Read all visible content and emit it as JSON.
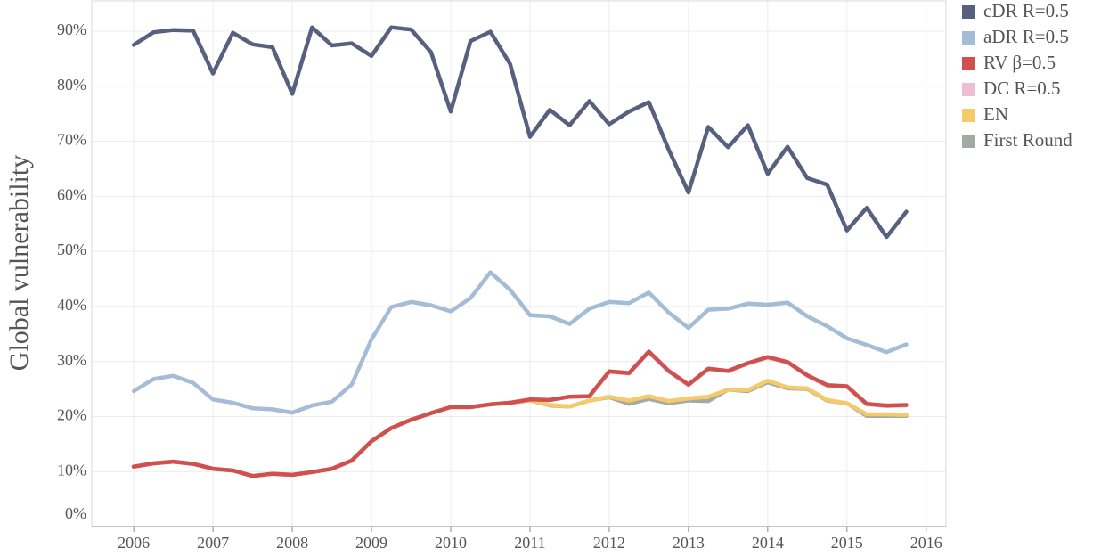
{
  "chart_data": {
    "type": "line",
    "y_label": "Global vulnerability",
    "x": [
      2006,
      2006.25,
      2006.5,
      2006.75,
      2007,
      2007.25,
      2007.5,
      2007.75,
      2008,
      2008.25,
      2008.5,
      2008.75,
      2009,
      2009.25,
      2009.5,
      2009.75,
      2010,
      2010.25,
      2010.5,
      2010.75,
      2011,
      2011.25,
      2011.5,
      2011.75,
      2012,
      2012.25,
      2012.5,
      2012.75,
      2013,
      2013.25,
      2013.5,
      2013.75,
      2014,
      2014.25,
      2014.5,
      2014.75,
      2015,
      2015.25,
      2015.5,
      2015.75
    ],
    "xlim": [
      2005.47,
      2016.25
    ],
    "xticks": [
      2006,
      2007,
      2008,
      2009,
      2010,
      2011,
      2012,
      2013,
      2014,
      2015,
      2016
    ],
    "ylim": [
      0,
      95.5
    ],
    "yticks": [
      {
        "value": 0,
        "label": "0%"
      },
      {
        "value": 10,
        "label": "10%"
      },
      {
        "value": 20,
        "label": "20%"
      },
      {
        "value": 30,
        "label": "30%"
      },
      {
        "value": 40,
        "label": "40%"
      },
      {
        "value": 50,
        "label": "50%"
      },
      {
        "value": 60,
        "label": "60%"
      },
      {
        "value": 70,
        "label": "70%"
      },
      {
        "value": 80,
        "label": "80%"
      },
      {
        "value": 90,
        "label": "90%"
      }
    ],
    "grid": true,
    "legend": "right",
    "series": [
      {
        "name": "cDR R=0.5",
        "color": "#57607f",
        "values": [
          87.5,
          89.8,
          90.2,
          90.1,
          82.3,
          89.7,
          87.6,
          87.1,
          78.6,
          90.7,
          87.4,
          87.8,
          85.5,
          90.7,
          90.3,
          86.2,
          75.4,
          88.2,
          89.9,
          84.0,
          70.8,
          75.7,
          72.9,
          77.3,
          73.1,
          75.4,
          77.1,
          68.5,
          60.7,
          72.6,
          68.9,
          72.9,
          64.1,
          69.0,
          63.3,
          62.1,
          53.8,
          57.9,
          52.6,
          57.2
        ]
      },
      {
        "name": "aDR R=0.5",
        "color": "#a4bcd6",
        "values": [
          24.6,
          26.8,
          27.4,
          26.1,
          23.1,
          22.5,
          21.5,
          21.3,
          20.7,
          22.0,
          22.7,
          25.8,
          34.0,
          39.9,
          40.8,
          40.2,
          39.1,
          41.5,
          46.2,
          43.0,
          38.4,
          38.2,
          36.8,
          39.6,
          40.8,
          40.6,
          42.5,
          38.9,
          36.1,
          39.4,
          39.6,
          40.5,
          40.3,
          40.7,
          38.2,
          36.4,
          34.2,
          33.0,
          31.7,
          33.1
        ]
      },
      {
        "name": "RV β=0.5",
        "color": "#d0504f",
        "values": [
          10.9,
          11.5,
          11.8,
          11.4,
          10.5,
          10.2,
          9.2,
          9.6,
          9.4,
          9.9,
          10.5,
          12.0,
          15.5,
          17.9,
          19.4,
          20.6,
          21.7,
          21.7,
          22.2,
          22.5,
          23.1,
          23.0,
          23.6,
          23.7,
          28.2,
          27.9,
          31.8,
          28.3,
          25.8,
          28.7,
          28.3,
          29.7,
          30.8,
          29.9,
          27.5,
          25.7,
          25.5,
          22.3,
          22.0,
          22.1
        ]
      },
      {
        "name": "DC R=0.5",
        "color": "#eebfd0",
        "values": [
          10.9,
          11.5,
          11.8,
          11.4,
          10.5,
          10.2,
          9.2,
          9.6,
          9.4,
          9.9,
          10.5,
          12.0,
          15.5,
          17.9,
          19.4,
          20.6,
          21.7,
          21.7,
          22.2,
          22.5,
          23.1,
          23.0,
          23.6,
          23.7,
          28.1,
          27.8,
          31.7,
          28.2,
          25.7,
          28.6,
          28.2,
          29.6,
          30.7,
          29.8,
          27.4,
          25.6,
          25.4,
          22.2,
          21.9,
          22.0
        ]
      },
      {
        "name": "EN",
        "color": "#f5cb6a",
        "values": [
          10.9,
          11.5,
          11.8,
          11.4,
          10.5,
          10.2,
          9.2,
          9.6,
          9.4,
          9.9,
          10.5,
          12.0,
          15.5,
          17.9,
          19.4,
          20.6,
          21.7,
          21.7,
          22.2,
          22.5,
          22.9,
          22.1,
          21.8,
          22.9,
          23.6,
          22.9,
          23.7,
          22.8,
          23.3,
          23.6,
          24.9,
          24.8,
          26.5,
          25.3,
          25.1,
          23.0,
          22.4,
          20.4,
          20.4,
          20.3
        ]
      },
      {
        "name": "First Round",
        "color": "#a2aaa6",
        "values": [
          10.9,
          11.5,
          11.8,
          11.4,
          10.5,
          10.2,
          9.2,
          9.6,
          9.4,
          9.9,
          10.5,
          12.0,
          15.5,
          17.9,
          19.4,
          20.6,
          21.7,
          21.7,
          22.2,
          22.5,
          22.9,
          22.0,
          21.8,
          22.9,
          23.5,
          22.3,
          23.2,
          22.4,
          22.9,
          22.8,
          24.9,
          24.6,
          26.2,
          25.1,
          25.0,
          22.9,
          22.4,
          20.1,
          20.1,
          20.1
        ]
      }
    ]
  }
}
